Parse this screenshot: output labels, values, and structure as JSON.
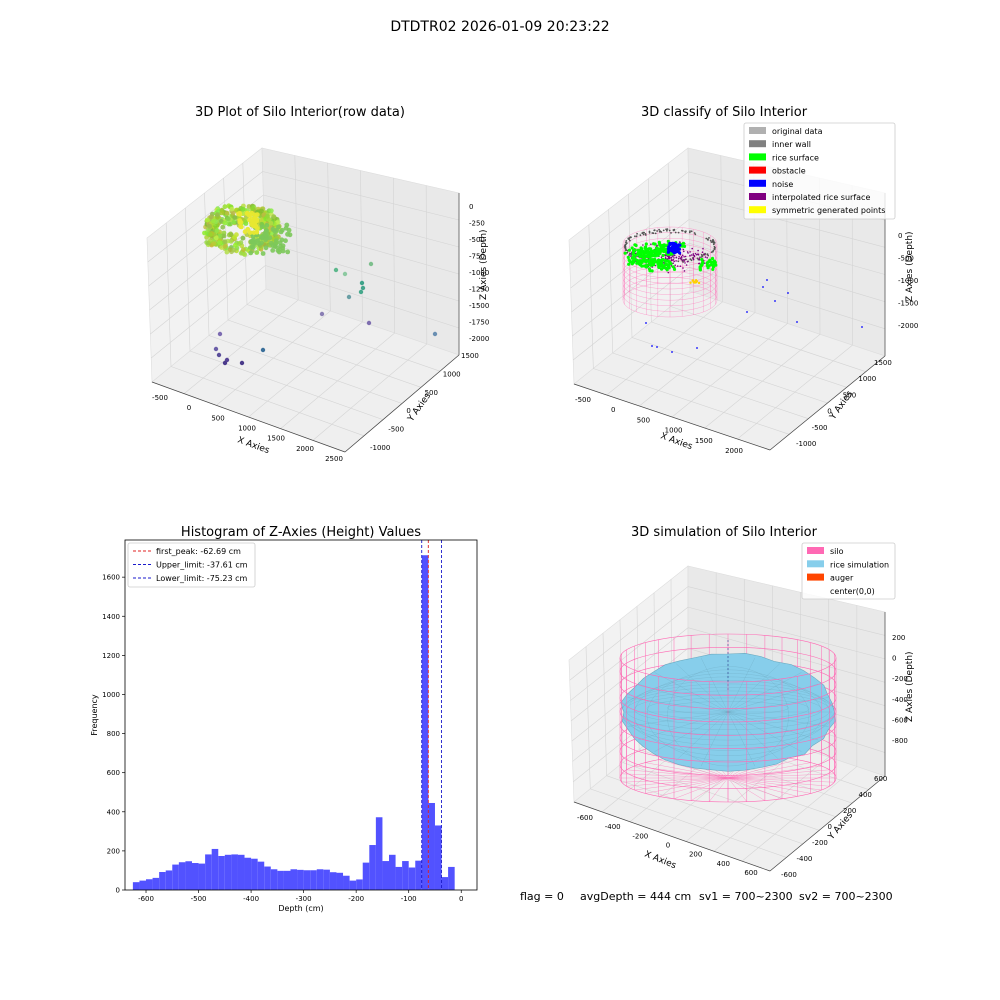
{
  "figure": {
    "suptitle": "DTDTR02 2026-01-09 20:23:22",
    "footer": {
      "flag": "flag = 0",
      "avg_depth": "avgDepth = 444 cm",
      "sv1": "sv1 = 700~2300",
      "sv2": "sv2 = 700~2300"
    }
  },
  "colors": {
    "hist_bar": "#5252ff",
    "first_peak": "#e02020",
    "limits": "#1a1acc",
    "rice_surface": "#00ff00",
    "noise": "#0000ff",
    "interpolated": "#800080",
    "symmetric": "#ffff00",
    "silo": "#ff69b4",
    "rice_sim": "#87ceeb",
    "auger": "#ff4500"
  },
  "chart_data": [
    {
      "type": "scatter",
      "title": "3D Plot of Silo Interior(row data)",
      "xlabel": "X Axies",
      "ylabel": "Y Axies",
      "zlabel": "Z Axies (Depth)",
      "x_ticks": [
        "-500",
        "0",
        "500",
        "1000",
        "1500",
        "2000",
        "2500"
      ],
      "y_ticks": [
        "-1000",
        "-500",
        "0",
        "500",
        "1000",
        "1500"
      ],
      "z_ticks": [
        "0",
        "-250",
        "-500",
        "-750",
        "-1000",
        "-1250",
        "-1500",
        "-1750",
        "-2000"
      ],
      "grid": true,
      "description_points": "dense ring of points near top-left; sparse noise points below and to the right"
    },
    {
      "type": "scatter",
      "title": "3D classify of Silo Interior",
      "xlabel": "X Axies",
      "ylabel": "Y Axies",
      "zlabel": "Z Axies (Depth)",
      "x_ticks": [
        "-500",
        "0",
        "500",
        "1000",
        "1500",
        "2000"
      ],
      "y_ticks": [
        "-1000",
        "-500",
        "0",
        "500",
        "1000",
        "1500"
      ],
      "z_ticks": [
        "0",
        "-500",
        "-1000",
        "-1500",
        "-2000"
      ],
      "grid": true,
      "legend_position": "top-right",
      "legend": [
        {
          "label": "original data",
          "color": "#b0b0b0"
        },
        {
          "label": "inner wall",
          "color": "#808080"
        },
        {
          "label": "rice surface",
          "color": "#00ff00"
        },
        {
          "label": "obstacle",
          "color": "#ff0000"
        },
        {
          "label": "noise",
          "color": "#0000ff"
        },
        {
          "label": "interpolated rice surface",
          "color": "#800080"
        },
        {
          "label": "symmetric generated points",
          "color": "#ffff00"
        }
      ]
    },
    {
      "type": "bar",
      "title": "Histogram of Z-Axies (Height) Values",
      "xlabel": "Depth (cm)",
      "ylabel": "Frequency",
      "xlim": [
        -640,
        30
      ],
      "ylim": [
        0,
        1790
      ],
      "x_ticks": [
        -600,
        -500,
        -400,
        -300,
        -200,
        -100,
        0
      ],
      "y_ticks": [
        0,
        200,
        400,
        600,
        800,
        1000,
        1200,
        1400,
        1600
      ],
      "bin_width": 12.5,
      "bin_start": -625,
      "values": [
        40,
        48,
        55,
        62,
        92,
        100,
        130,
        142,
        147,
        138,
        135,
        182,
        210,
        174,
        180,
        182,
        180,
        165,
        160,
        145,
        120,
        106,
        98,
        98,
        106,
        103,
        101,
        101,
        106,
        104,
        91,
        88,
        73,
        48,
        54,
        140,
        230,
        372,
        148,
        180,
        118,
        148,
        115,
        150,
        1712,
        445,
        330,
        66,
        118
      ],
      "vlines": [
        {
          "label": "first_peak: -62.69 cm",
          "x": -62.69,
          "color": "#e02020"
        },
        {
          "label": "Upper_limit: -37.61 cm",
          "x": -37.61,
          "color": "#1a1acc"
        },
        {
          "label": "Lower_limit: -75.23 cm",
          "x": -75.23,
          "color": "#1a1acc"
        }
      ],
      "legend_position": "top-left",
      "grid": false
    },
    {
      "type": "surface",
      "title": "3D simulation of Silo Interior",
      "xlabel": "X Axies",
      "ylabel": "Y Axies",
      "zlabel": "Z Axies (Depth)",
      "x_ticks": [
        "-600",
        "-400",
        "-200",
        "0",
        "200",
        "400",
        "600"
      ],
      "y_ticks": [
        "-600",
        "-400",
        "-200",
        "0",
        "200",
        "400",
        "600"
      ],
      "z_ticks": [
        "200",
        "0",
        "-200",
        "-400",
        "-600",
        "-800"
      ],
      "grid": true,
      "legend_position": "top-right",
      "legend": [
        {
          "label": "silo",
          "color": "#ff69b4"
        },
        {
          "label": "rice simulation",
          "color": "#87ceeb"
        },
        {
          "label": "auger",
          "color": "#ff4500"
        },
        {
          "label": "center(0,0)",
          "color": "#ffffff"
        }
      ]
    }
  ]
}
